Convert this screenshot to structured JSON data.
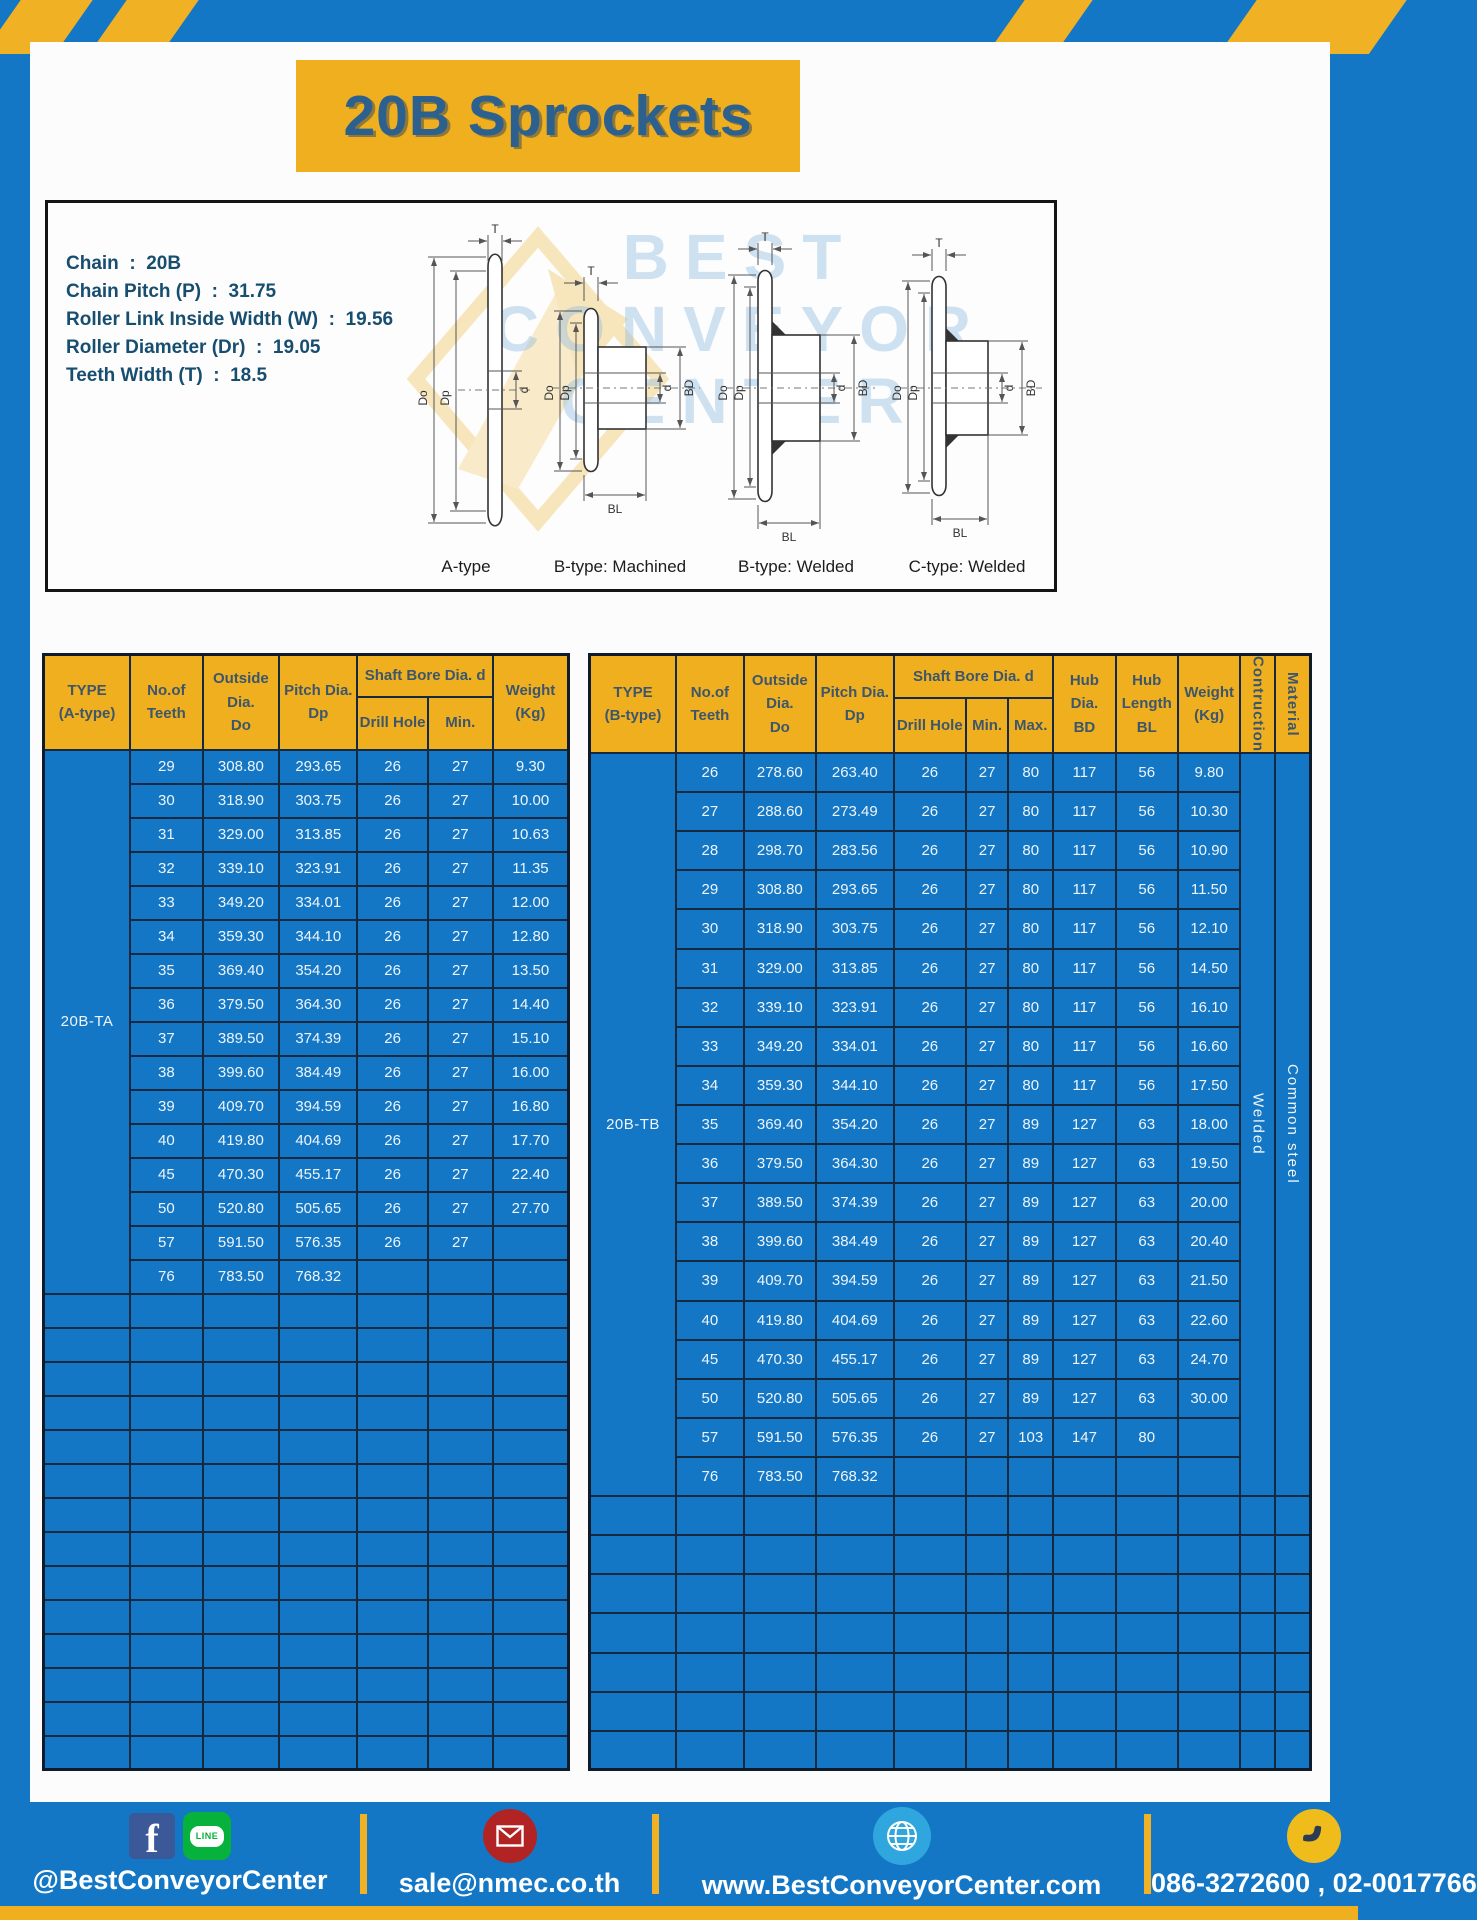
{
  "page": {
    "title_banner": "20B Sprockets"
  },
  "specs": {
    "lines": [
      "Chain  :  20B",
      "Chain Pitch (P)  :  31.75",
      "Roller Link Inside Width (W)  :  19.56",
      "Roller Diameter (Dr)  :  19.05",
      "Teeth Width (T)  :  18.5"
    ]
  },
  "diagrams": {
    "captions": [
      "A-type",
      "B-type: Machined",
      "B-type: Welded",
      "C-type: Welded"
    ],
    "dims": {
      "t": "T",
      "do": "Do",
      "dp": "Dp",
      "d": "d",
      "bd": "BD",
      "bl": "BL"
    },
    "watermark_lines": [
      "BEST",
      "CONVEYOR",
      "CENTER"
    ]
  },
  "table_a": {
    "headers": {
      "type": "TYPE\n(A-type)",
      "teeth": "No.of\nTeeth",
      "outside": "Outside\nDia.\nDo",
      "pitch": "Pitch Dia.\nDp",
      "shaft": "Shaft Bore Dia. d",
      "drill": "Drill Hole",
      "min": "Min.",
      "weight": "Weight\n(Kg)"
    },
    "type_label": "20B-TA",
    "rows": [
      [
        "29",
        "308.80",
        "293.65",
        "26",
        "27",
        "9.30"
      ],
      [
        "30",
        "318.90",
        "303.75",
        "26",
        "27",
        "10.00"
      ],
      [
        "31",
        "329.00",
        "313.85",
        "26",
        "27",
        "10.63"
      ],
      [
        "32",
        "339.10",
        "323.91",
        "26",
        "27",
        "11.35"
      ],
      [
        "33",
        "349.20",
        "334.01",
        "26",
        "27",
        "12.00"
      ],
      [
        "34",
        "359.30",
        "344.10",
        "26",
        "27",
        "12.80"
      ],
      [
        "35",
        "369.40",
        "354.20",
        "26",
        "27",
        "13.50"
      ],
      [
        "36",
        "379.50",
        "364.30",
        "26",
        "27",
        "14.40"
      ],
      [
        "37",
        "389.50",
        "374.39",
        "26",
        "27",
        "15.10"
      ],
      [
        "38",
        "399.60",
        "384.49",
        "26",
        "27",
        "16.00"
      ],
      [
        "39",
        "409.70",
        "394.59",
        "26",
        "27",
        "16.80"
      ],
      [
        "40",
        "419.80",
        "404.69",
        "26",
        "27",
        "17.70"
      ],
      [
        "45",
        "470.30",
        "455.17",
        "26",
        "27",
        "22.40"
      ],
      [
        "50",
        "520.80",
        "505.65",
        "26",
        "27",
        "27.70"
      ],
      [
        "57",
        "591.50",
        "576.35",
        "26",
        "27",
        ""
      ],
      [
        "76",
        "783.50",
        "768.32",
        "",
        "",
        ""
      ]
    ],
    "empty_rows": 14
  },
  "table_b": {
    "headers": {
      "type": "TYPE\n(B-type)",
      "teeth": "No.of\nTeeth",
      "outside": "Outside\nDia.\nDo",
      "pitch": "Pitch Dia.\nDp",
      "shaft": "Shaft Bore Dia. d",
      "drill": "Drill Hole",
      "min": "Min.",
      "max": "Max.",
      "hub_bd": "Hub Dia.\nBD",
      "hub_bl": "Hub\nLength\nBL",
      "weight": "Weight\n(Kg)",
      "construction": "Contruction",
      "material": "Material"
    },
    "type_label": "20B-TB",
    "construction_value": "Welded",
    "material_value": "Common steel",
    "rows": [
      [
        "26",
        "278.60",
        "263.40",
        "26",
        "27",
        "80",
        "117",
        "56",
        "9.80"
      ],
      [
        "27",
        "288.60",
        "273.49",
        "26",
        "27",
        "80",
        "117",
        "56",
        "10.30"
      ],
      [
        "28",
        "298.70",
        "283.56",
        "26",
        "27",
        "80",
        "117",
        "56",
        "10.90"
      ],
      [
        "29",
        "308.80",
        "293.65",
        "26",
        "27",
        "80",
        "117",
        "56",
        "11.50"
      ],
      [
        "30",
        "318.90",
        "303.75",
        "26",
        "27",
        "80",
        "117",
        "56",
        "12.10"
      ],
      [
        "31",
        "329.00",
        "313.85",
        "26",
        "27",
        "80",
        "117",
        "56",
        "14.50"
      ],
      [
        "32",
        "339.10",
        "323.91",
        "26",
        "27",
        "80",
        "117",
        "56",
        "16.10"
      ],
      [
        "33",
        "349.20",
        "334.01",
        "26",
        "27",
        "80",
        "117",
        "56",
        "16.60"
      ],
      [
        "34",
        "359.30",
        "344.10",
        "26",
        "27",
        "80",
        "117",
        "56",
        "17.50"
      ],
      [
        "35",
        "369.40",
        "354.20",
        "26",
        "27",
        "89",
        "127",
        "63",
        "18.00"
      ],
      [
        "36",
        "379.50",
        "364.30",
        "26",
        "27",
        "89",
        "127",
        "63",
        "19.50"
      ],
      [
        "37",
        "389.50",
        "374.39",
        "26",
        "27",
        "89",
        "127",
        "63",
        "20.00"
      ],
      [
        "38",
        "399.60",
        "384.49",
        "26",
        "27",
        "89",
        "127",
        "63",
        "20.40"
      ],
      [
        "39",
        "409.70",
        "394.59",
        "26",
        "27",
        "89",
        "127",
        "63",
        "21.50"
      ],
      [
        "40",
        "419.80",
        "404.69",
        "26",
        "27",
        "89",
        "127",
        "63",
        "22.60"
      ],
      [
        "45",
        "470.30",
        "455.17",
        "26",
        "27",
        "89",
        "127",
        "63",
        "24.70"
      ],
      [
        "50",
        "520.80",
        "505.65",
        "26",
        "27",
        "89",
        "127",
        "63",
        "30.00"
      ],
      [
        "57",
        "591.50",
        "576.35",
        "26",
        "27",
        "103",
        "147",
        "80",
        ""
      ],
      [
        "76",
        "783.50",
        "768.32",
        "",
        "",
        "",
        "",
        "",
        ""
      ]
    ],
    "empty_rows": 7
  },
  "footer": {
    "social_label": "@BestConveyorCenter",
    "line_badge": "LINE",
    "facebook_letter": "f",
    "email_label": "sale@nmec.co.th",
    "website_label": "www.BestConveyorCenter.com",
    "phone_label": "086-3272600 , 02-0017766"
  },
  "colors": {
    "brand_blue": "#1377C6",
    "brand_yellow": "#EFAF1F",
    "title_text": "#2B608F",
    "spec_text": "#174E6F",
    "header_text": "#3D566B",
    "grid_line": "#15293F"
  }
}
